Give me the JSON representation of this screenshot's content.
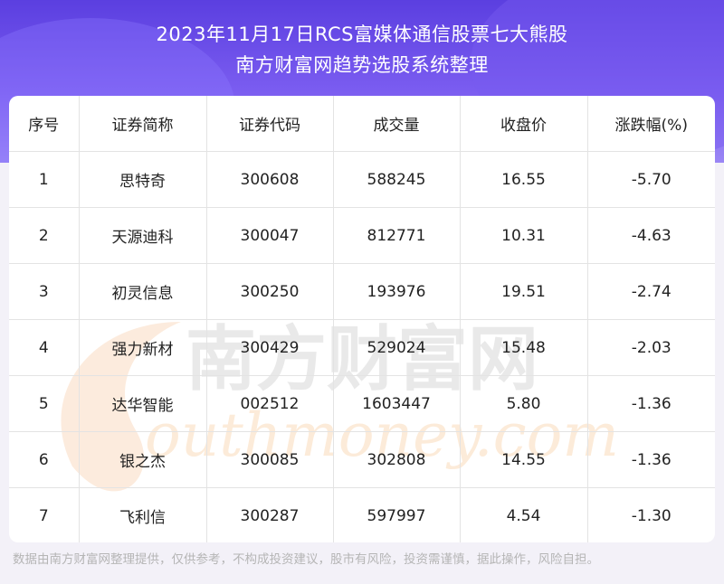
{
  "title_line1": "2023年11月17日RCS富媒体通信股票七大熊股",
  "title_line2": "南方财富网趋势选股系统整理",
  "columns": [
    "序号",
    "证券简称",
    "证券代码",
    "成交量",
    "收盘价",
    "涨跌幅(%)"
  ],
  "rows": [
    [
      "1",
      "思特奇",
      "300608",
      "588245",
      "16.55",
      "-5.70"
    ],
    [
      "2",
      "天源迪科",
      "300047",
      "812771",
      "10.31",
      "-4.63"
    ],
    [
      "3",
      "初灵信息",
      "300250",
      "193976",
      "19.51",
      "-2.74"
    ],
    [
      "4",
      "强力新材",
      "300429",
      "529024",
      "15.48",
      "-2.03"
    ],
    [
      "5",
      "达华智能",
      "002512",
      "1603447",
      "5.80",
      "-1.36"
    ],
    [
      "6",
      "银之杰",
      "300085",
      "302808",
      "14.55",
      "-1.36"
    ],
    [
      "7",
      "飞利信",
      "300287",
      "597997",
      "4.54",
      "-1.30"
    ]
  ],
  "watermark_cn": "南方财富网",
  "watermark_en": "outhmoney.com",
  "footer": "数据由南方财富网整理提供，仅供参考，不构成投资建议，股市有风险，投资需谨慎，据此操作，风险自担。"
}
